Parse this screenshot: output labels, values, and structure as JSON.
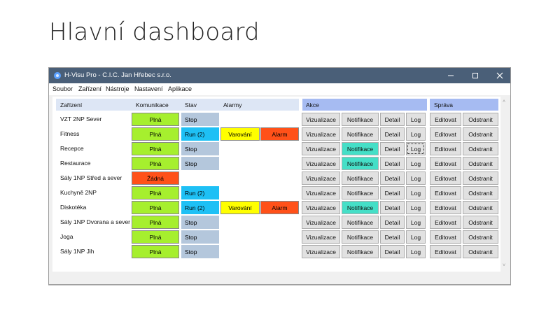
{
  "slide": {
    "title": "Hlavní dashboard"
  },
  "window": {
    "title": "H-Visu Pro - C.I.C. Jan Hřebec s.r.o.",
    "controls": {
      "minimize": "–",
      "maximize": "☐",
      "close": "✕"
    }
  },
  "menu": [
    "Soubor",
    "Zařízení",
    "Nástroje",
    "Nastavení",
    "Aplikace"
  ],
  "columns": {
    "device": "Zařízení",
    "communication": "Komunikace",
    "state": "Stav",
    "alarms": "Alarmy",
    "actions": "Akce",
    "management": "Správa"
  },
  "action_buttons": [
    "Vizualizace",
    "Notifikace",
    "Detail",
    "Log"
  ],
  "management_buttons": [
    "Editovat",
    "Odstranit"
  ],
  "rows": [
    {
      "name": "VZT 2NP Sever",
      "comm": "Plná",
      "state": "Stop",
      "warning": "",
      "alarm": "",
      "notif_active": false
    },
    {
      "name": "Fitness",
      "comm": "Plná",
      "state": "Run (2)",
      "warning": "Varování",
      "alarm": "Alarm",
      "notif_active": false
    },
    {
      "name": "Recepce",
      "comm": "Plná",
      "state": "Stop",
      "warning": "",
      "alarm": "",
      "notif_active": true
    },
    {
      "name": "Restaurace",
      "comm": "Plná",
      "state": "Stop",
      "warning": "",
      "alarm": "",
      "notif_active": true
    },
    {
      "name": "Sály 1NP Střed a sever",
      "comm": "Žádná",
      "state": "",
      "warning": "",
      "alarm": "",
      "notif_active": false
    },
    {
      "name": "Kuchyně 2NP",
      "comm": "Plná",
      "state": "Run (2)",
      "warning": "",
      "alarm": "",
      "notif_active": false
    },
    {
      "name": "Diskotéka",
      "comm": "Plná",
      "state": "Run (2)",
      "warning": "Varování",
      "alarm": "Alarm",
      "notif_active": true
    },
    {
      "name": "Sály 1NP Dvorana a sever",
      "comm": "Plná",
      "state": "Stop",
      "warning": "",
      "alarm": "",
      "notif_active": false
    },
    {
      "name": "Joga",
      "comm": "Plná",
      "state": "Stop",
      "warning": "",
      "alarm": "",
      "notif_active": false
    },
    {
      "name": "Sály 1NP Jih",
      "comm": "Plná",
      "state": "Stop",
      "warning": "",
      "alarm": "",
      "notif_active": false
    }
  ],
  "colors": {
    "comm_full": "#a6ef2e",
    "comm_none": "#ff5119",
    "state_stop": "#b4c7dc",
    "state_run": "#1ec0f5",
    "warning": "#ffff00",
    "alarm": "#ff5119",
    "notif_active": "#45dfc7",
    "header_device": "#dde6f5",
    "header_actions": "#a6bbf2",
    "header_management": "#a6bbf2",
    "titlebar": "#4a5f78"
  }
}
